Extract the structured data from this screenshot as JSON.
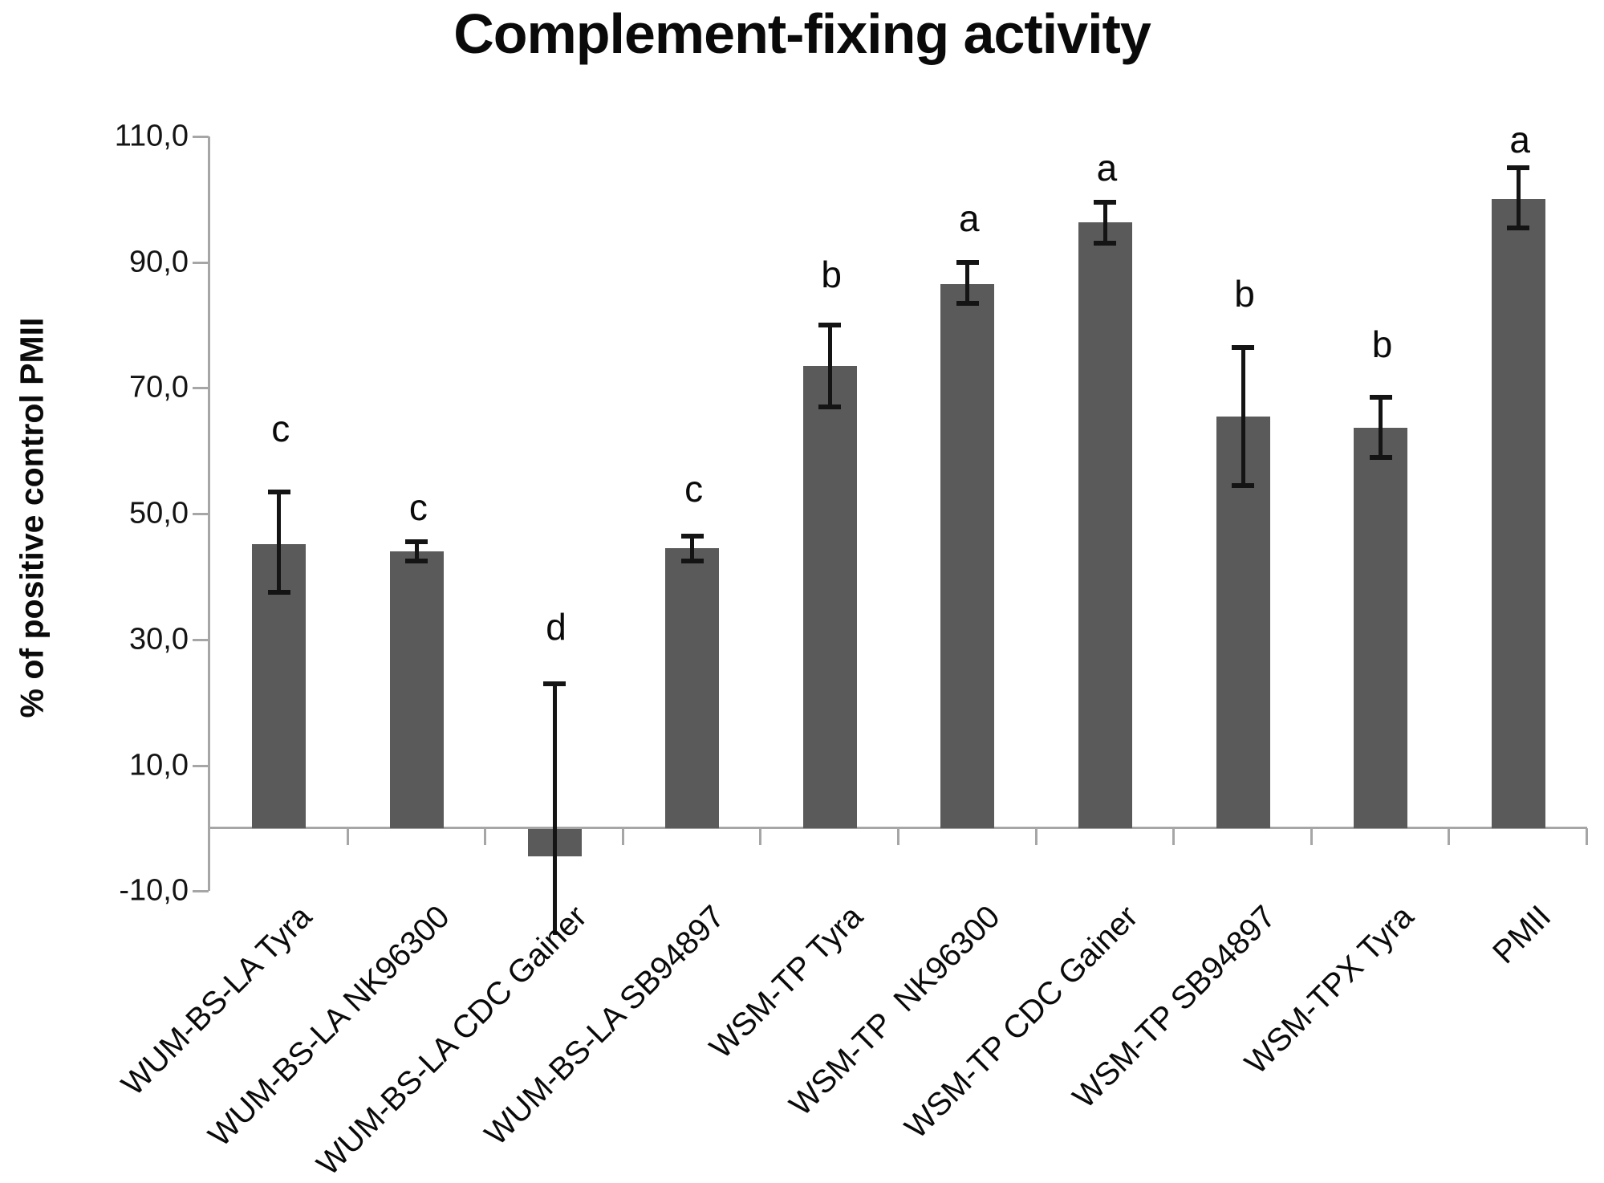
{
  "title": "Complement-fixing activity",
  "y_axis": {
    "title": "% of positive control PMII",
    "ticks": [
      {
        "value": 110,
        "label": "110,0"
      },
      {
        "value": 90,
        "label": "90,0"
      },
      {
        "value": 70,
        "label": "70,0"
      },
      {
        "value": 50,
        "label": "50,0"
      },
      {
        "value": 30,
        "label": "30,0"
      },
      {
        "value": 10,
        "label": "10,0"
      },
      {
        "value": -10,
        "label": "-10,0"
      }
    ]
  },
  "chart_data": {
    "type": "bar",
    "title": "Complement-fixing activity",
    "xlabel": "",
    "ylabel": "% of positive control PMII",
    "ylim": [
      -10,
      110
    ],
    "grid": false,
    "legend": false,
    "decimal_style": "comma",
    "categories": [
      "WUM-BS-LA Tyra",
      "WUM-BS-LA NK96300",
      "WUM-BS-LA CDC Gainer",
      "WUM-BS-LA SB94897",
      "WSM-TP Tyra",
      "WSM-TP  NK96300",
      "WSM-TP CDC Gainer",
      "WSM-TP SB94897",
      "WSM-TPX Tyra",
      "PMII"
    ],
    "values": [
      45.2,
      44.0,
      -4.4,
      44.5,
      73.5,
      86.5,
      96.3,
      65.5,
      63.7,
      100.0
    ],
    "error_high": [
      53.5,
      45.5,
      23.0,
      46.5,
      80.0,
      90.0,
      99.5,
      76.5,
      68.5,
      105.0
    ],
    "error_low": [
      37.5,
      42.5,
      -17.0,
      42.5,
      67.0,
      83.5,
      93.0,
      54.5,
      59.0,
      95.5
    ],
    "error_low_capped": [
      true,
      true,
      false,
      true,
      true,
      true,
      true,
      true,
      true,
      true
    ],
    "significance_letters": [
      "c",
      "c",
      "d",
      "c",
      "b",
      "a",
      "a",
      "b",
      "b",
      "a"
    ],
    "letter_y": [
      63.5,
      51.0,
      32.0,
      54.0,
      88.0,
      97.0,
      105.0,
      85.0,
      77.0,
      109.5
    ],
    "colors": {
      "bar": "#5a5a5a",
      "axis": "#a6a6a6",
      "error_bar": "#141414",
      "text": "#000000"
    }
  }
}
